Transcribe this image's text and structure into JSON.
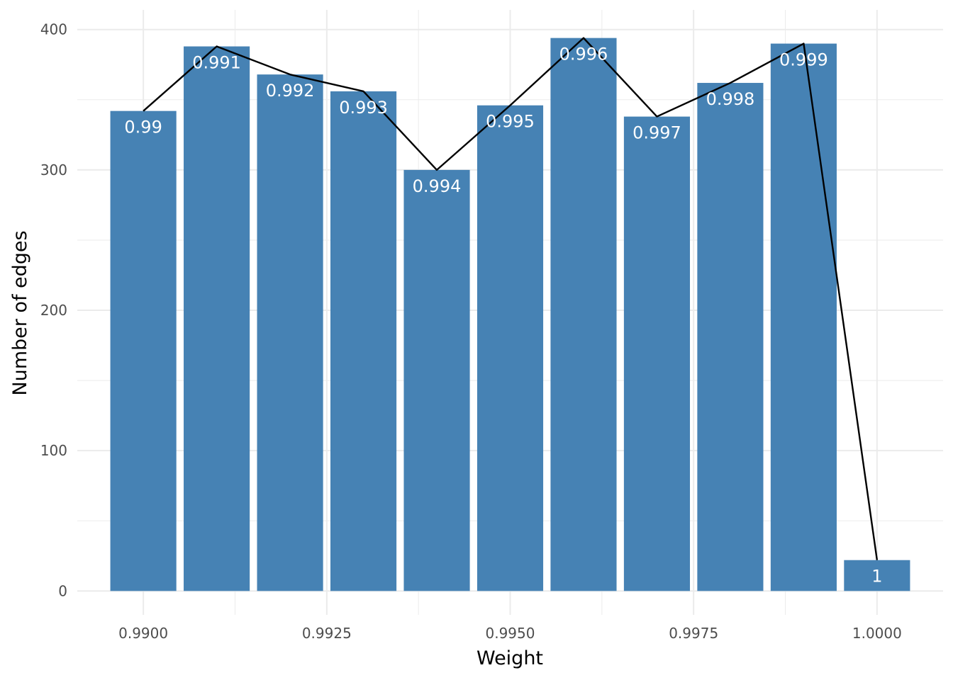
{
  "chart_data": {
    "type": "bar",
    "xlabel": "Weight",
    "ylabel": "Number of edges",
    "xlim": [
      0.9891,
      1.0009
    ],
    "ylim": [
      -17,
      414
    ],
    "x_ticks": [
      0.99,
      0.9925,
      0.995,
      0.9975,
      1.0
    ],
    "x_tick_labels": [
      "0.9900",
      "0.9925",
      "0.9950",
      "0.9975",
      "1.0000"
    ],
    "y_ticks": [
      0,
      100,
      200,
      300,
      400
    ],
    "y_tick_labels": [
      "0",
      "100",
      "200",
      "300",
      "400"
    ],
    "grid": true,
    "bar_width": 0.0009,
    "bar_color": "#4682B4",
    "line_color": "#000000",
    "x": [
      0.99,
      0.991,
      0.992,
      0.993,
      0.994,
      0.995,
      0.996,
      0.997,
      0.998,
      0.999,
      1.0
    ],
    "values": [
      342,
      388,
      368,
      356,
      300,
      346,
      394,
      338,
      362,
      390,
      22
    ],
    "labels": [
      "0.99",
      "0.991",
      "0.992",
      "0.993",
      "0.994",
      "0.995",
      "0.996",
      "0.997",
      "0.998",
      "0.999",
      "1"
    ]
  }
}
